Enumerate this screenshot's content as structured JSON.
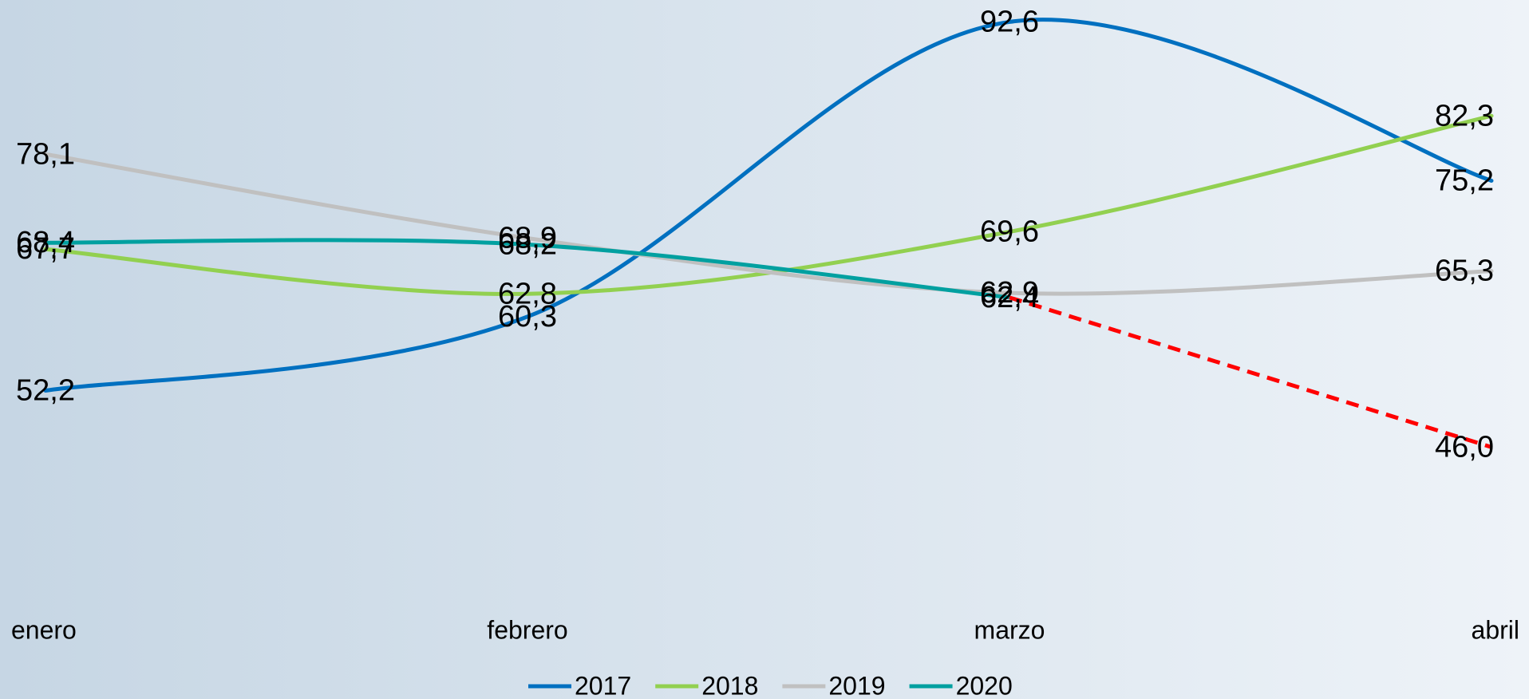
{
  "chart_data": {
    "type": "line",
    "smooth": true,
    "categories": [
      "enero",
      "febrero",
      "marzo",
      "abril"
    ],
    "ylim": [
      40,
      95
    ],
    "legend": "bottom",
    "series": [
      {
        "name": "2017",
        "color": "#0070c0",
        "values": [
          52.2,
          60.3,
          92.6,
          75.2
        ],
        "value_labels": [
          "52,2",
          "60,3",
          "92,6",
          "75,2"
        ]
      },
      {
        "name": "2018",
        "color": "#92d050",
        "values": [
          67.7,
          62.8,
          69.6,
          82.3
        ],
        "value_labels": [
          "67,7",
          "62,8",
          "69,6",
          "82,3"
        ]
      },
      {
        "name": "2019",
        "color": "#c0c0c0",
        "values": [
          78.1,
          68.9,
          62.9,
          65.3
        ],
        "value_labels": [
          "78,1",
          "68,9",
          "62,9",
          "65,3"
        ]
      },
      {
        "name": "2020",
        "color": "#00a0a0",
        "values": [
          68.4,
          68.2,
          62.4,
          46.0
        ],
        "value_labels": [
          "68,4",
          "68,2",
          "62,4",
          "46,0"
        ],
        "last_segment_dashed_color": "#ff0000"
      }
    ]
  }
}
